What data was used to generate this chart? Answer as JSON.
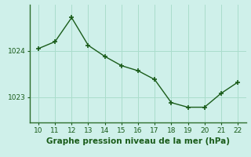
{
  "x": [
    10,
    11,
    12,
    13,
    14,
    15,
    16,
    17,
    18,
    19,
    20,
    21,
    22
  ],
  "y": [
    1024.05,
    1024.2,
    1024.72,
    1024.12,
    1023.88,
    1023.68,
    1023.57,
    1023.38,
    1022.88,
    1022.78,
    1022.78,
    1023.08,
    1023.32
  ],
  "line_color": "#1a5c1a",
  "marker": "+",
  "marker_size": 5,
  "linewidth": 1.0,
  "bg_color": "#cff0ea",
  "grid_color": "#aaddcc",
  "xlabel": "Graphe pression niveau de la mer (hPa)",
  "xlabel_color": "#1a5c1a",
  "xlabel_fontsize": 7.5,
  "tick_color": "#1a5c1a",
  "tick_fontsize": 6.5,
  "ytick_labels": [
    "1023",
    "1024"
  ],
  "ytick_values": [
    1023.0,
    1024.0
  ],
  "xlim": [
    9.5,
    22.5
  ],
  "ylim": [
    1022.45,
    1025.0
  ],
  "xticks": [
    10,
    11,
    12,
    13,
    14,
    15,
    16,
    17,
    18,
    19,
    20,
    21,
    22
  ],
  "spine_color": "#2d6e2d",
  "bottom_spine_color": "#2d6e2d"
}
